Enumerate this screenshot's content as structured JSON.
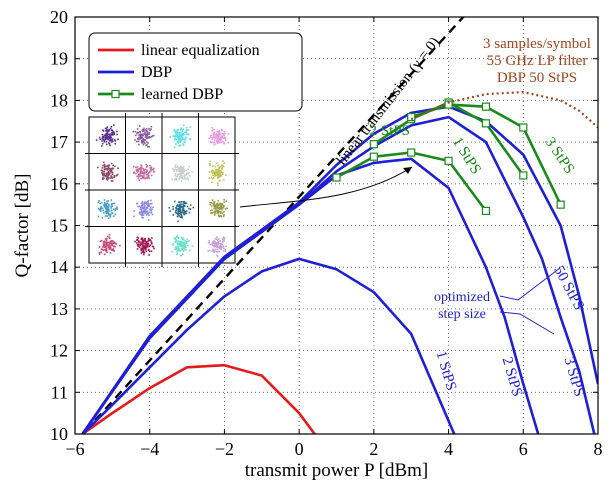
{
  "chart_data": {
    "type": "line",
    "xlabel": "transmit power P [dBm]",
    "ylabel": "Q-factor [dB]",
    "xlim": [
      -6,
      8
    ],
    "ylim": [
      10,
      20
    ],
    "xticks": [
      -6,
      -4,
      -2,
      0,
      2,
      4,
      6,
      8
    ],
    "xtick_labels": [
      "−6",
      "−4",
      "−2",
      "0",
      "2",
      "4",
      "6",
      "8"
    ],
    "yticks": [
      10,
      11,
      12,
      13,
      14,
      15,
      16,
      17,
      18,
      19,
      20
    ],
    "grid": true,
    "legend_position": "top-left",
    "legend": [
      {
        "label": "linear equalization",
        "color": "#e41a1c",
        "marker": "none"
      },
      {
        "label": "DBP",
        "color": "#1f1fd6",
        "marker": "none"
      },
      {
        "label": "learned DBP",
        "color": "#1a8a1a",
        "marker": "square"
      }
    ],
    "series": [
      {
        "name": "linear transmission (γ = 0)",
        "style": "dashed",
        "color": "#000000",
        "x": [
          -6,
          4.8
        ],
        "y": [
          9.8,
          20.4
        ]
      },
      {
        "name": "linear equalization",
        "color": "#e41a1c",
        "x": [
          -5.8,
          -5,
          -4,
          -3,
          -2,
          -1,
          0,
          0.5
        ],
        "y": [
          10.0,
          10.5,
          11.1,
          11.6,
          11.65,
          11.4,
          10.5,
          9.9
        ]
      },
      {
        "name": "1 StPS",
        "color": "#1f1fd6",
        "x": [
          -5.8,
          -5,
          -4,
          -3,
          -2,
          -1,
          0,
          1,
          2,
          3,
          4.15
        ],
        "y": [
          10.0,
          10.7,
          11.6,
          12.5,
          13.3,
          13.9,
          14.2,
          13.95,
          13.4,
          12.4,
          10.0
        ]
      },
      {
        "name": "2 StPS",
        "color": "#1f1fd6",
        "x": [
          -5.8,
          -4,
          -2,
          0,
          1,
          2,
          3,
          4,
          5,
          5.5,
          6,
          6.4
        ],
        "y": [
          10.0,
          12.3,
          14.2,
          15.5,
          16.2,
          16.5,
          16.6,
          15.9,
          14.0,
          12.8,
          11.2,
          10.0
        ]
      },
      {
        "name": "3 StPS",
        "color": "#1f1fd6",
        "x": [
          -5.8,
          -4,
          -2,
          0,
          1,
          2,
          3,
          4,
          5,
          6,
          6.5,
          7,
          7.5,
          7.9
        ],
        "y": [
          10.0,
          12.3,
          14.2,
          15.5,
          16.3,
          16.9,
          17.4,
          17.6,
          17.0,
          15.2,
          14.2,
          12.8,
          11.5,
          10.0
        ]
      },
      {
        "name": "50 StPS",
        "color": "#1f1fd6",
        "x": [
          -5.8,
          -4,
          -2,
          0,
          1,
          2,
          3,
          4,
          5,
          6,
          7,
          7.5,
          8
        ],
        "y": [
          10.0,
          12.35,
          14.25,
          15.55,
          16.45,
          17.2,
          17.7,
          17.85,
          17.5,
          16.7,
          15.0,
          13.3,
          11.2
        ]
      },
      {
        "name": "learned DBP 1 StPS",
        "color": "#1a8a1a",
        "marker": "square",
        "x": [
          1,
          2,
          3,
          4,
          5
        ],
        "y": [
          16.15,
          16.65,
          16.75,
          16.55,
          15.35
        ]
      },
      {
        "name": "learned DBP 2 StPS",
        "color": "#1a8a1a",
        "marker": "square",
        "x": [
          2,
          3,
          4,
          5,
          6
        ],
        "y": [
          16.95,
          17.55,
          17.95,
          17.45,
          16.2
        ]
      },
      {
        "name": "learned DBP 3 StPS",
        "color": "#1a8a1a",
        "marker": "square",
        "x": [
          3,
          4,
          5,
          6,
          7
        ],
        "y": [
          17.6,
          17.9,
          17.85,
          17.35,
          15.5
        ]
      },
      {
        "name": "3 samples/symbol 55 GHz LP filter DBP 50 StPS",
        "style": "dotted",
        "color": "#a0461e",
        "x": [
          3,
          4,
          5,
          6,
          7,
          7.5,
          8
        ],
        "y": [
          17.55,
          17.95,
          18.15,
          18.2,
          18.0,
          17.75,
          17.35
        ]
      }
    ],
    "annotations": [
      {
        "text": "linear transmission (γ = 0)"
      },
      {
        "text": "3 samples/symbol",
        "color": "#a0461e"
      },
      {
        "text": "55 GHz LP filter",
        "color": "#a0461e"
      },
      {
        "text": "DBP 50 StPS",
        "color": "#a0461e"
      },
      {
        "text": "2 StPS",
        "color": "#1a8a1a"
      },
      {
        "text": "1 StPS",
        "color": "#1a8a1a"
      },
      {
        "text": "3 StPS",
        "color": "#1a8a1a"
      },
      {
        "text": "optimized",
        "color": "#1f1fd6"
      },
      {
        "text": "step size",
        "color": "#1f1fd6"
      },
      {
        "text": "1 StPS",
        "color": "#1f1fd6"
      },
      {
        "text": "2 StPS",
        "color": "#1f1fd6"
      },
      {
        "text": "3 StPS",
        "color": "#1f1fd6"
      },
      {
        "text": "50 StPS",
        "color": "#1f1fd6"
      }
    ],
    "inset": {
      "type": "constellation-16QAM",
      "colors": [
        "#5a2d91",
        "#8a5a9e",
        "#5ee0e8",
        "#e59ae0",
        "#8a4a6a",
        "#c46aa0",
        "#c8cfcf",
        "#c2c255",
        "#4a9ec8",
        "#8a8ae0",
        "#2a6a8a",
        "#9a9a45",
        "#c84a7a",
        "#a01050",
        "#6ae0c8",
        "#c8a0d8"
      ]
    }
  }
}
